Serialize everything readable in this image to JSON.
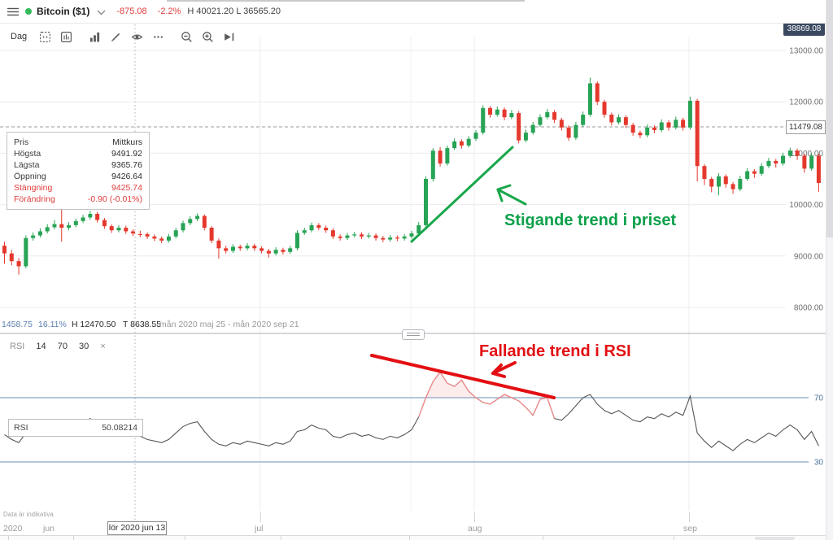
{
  "topbar": {
    "title": "Bitcoin ($1)",
    "change": "-875.08",
    "change_pct": "-2.2%",
    "session_high_low": "H 40021.20 L 36565.20"
  },
  "toolbar": {
    "interval_label": "Dag",
    "icons": [
      "interval-settings",
      "chart-type",
      "indicators",
      "drawing-tools",
      "visibility",
      "more-options",
      "zoom-out",
      "zoom-in",
      "go-to-latest"
    ]
  },
  "price_badge": "38869.08",
  "crosshair": {
    "price_label": "11479.08",
    "date_label": "lör 2020 jun 13"
  },
  "info_panel": {
    "rows": [
      {
        "label": "Pris",
        "value": "Mittkurs"
      },
      {
        "label": "Högsta",
        "value": "9491.92"
      },
      {
        "label": "Lägsta",
        "value": "9365.76"
      },
      {
        "label": "Öppning",
        "value": "9426.64"
      },
      {
        "label": "Stängning",
        "value": "9425.74"
      },
      {
        "label": "Förändring",
        "value": "-0.90 (-0.01%)"
      }
    ]
  },
  "status_bar": {
    "range": "1458.75",
    "range_pct": "16.11%",
    "high": "H 12470.50",
    "low": "T 8638.55",
    "period": "mån 2020 maj 25 - mån 2020 sep 21"
  },
  "rsi_header": {
    "name": "RSI",
    "period": "14",
    "upper": "70",
    "lower": "30",
    "close": "×"
  },
  "rsi_tooltip": {
    "label": "RSI",
    "value": "50.08214"
  },
  "annotations_text": {
    "price_trend": "Stigande trend i priset",
    "rsi_trend": "Fallande trend i RSI"
  },
  "x_axis": {
    "year": "2020",
    "months": [
      {
        "label": "jun"
      },
      {
        "label": "jul"
      },
      {
        "label": "aug"
      },
      {
        "label": "sep"
      }
    ]
  },
  "footer_note": "Data är indikativa",
  "colors": {
    "up": "#27a355",
    "down": "#e5382d",
    "annotation_green": "#17a74a",
    "annotation_red": "#e30f13",
    "rsi_level_blue": "#6a8fb5",
    "badge_bg": "#3a4961"
  },
  "chart_data": {
    "type": "candlestick",
    "instrument": "Bitcoin ($1)",
    "interval": "Dag",
    "visible_range": "mån 2020 maj 25 - mån 2020 sep 21",
    "price_axis": {
      "tick_labels": [
        "13000.00",
        "12000.00",
        "11000.00",
        "10000.00",
        "9000.00",
        "8000.00"
      ],
      "tick_values": [
        13000,
        12000,
        11000,
        10000,
        9000,
        8000
      ],
      "ylim": [
        7700,
        13270
      ]
    },
    "rsi_axis": {
      "tick_labels": [
        "70",
        "30"
      ],
      "levels": [
        70,
        30
      ]
    },
    "candles": [
      [
        9200,
        9280,
        8850,
        9050
      ],
      [
        9050,
        9120,
        8820,
        8900
      ],
      [
        8900,
        8960,
        8639,
        8800
      ],
      [
        8800,
        9400,
        8760,
        9350
      ],
      [
        9350,
        9460,
        9300,
        9400
      ],
      [
        9400,
        9540,
        9360,
        9480
      ],
      [
        9480,
        9620,
        9440,
        9560
      ],
      [
        9560,
        9700,
        9520,
        9620
      ],
      [
        9620,
        10100,
        9280,
        9550
      ],
      [
        9550,
        9660,
        9500,
        9600
      ],
      [
        9600,
        9730,
        9560,
        9680
      ],
      [
        9680,
        9800,
        9640,
        9750
      ],
      [
        9750,
        9880,
        9710,
        9820
      ],
      [
        9820,
        9860,
        9650,
        9700
      ],
      [
        9700,
        9740,
        9530,
        9580
      ],
      [
        9580,
        9620,
        9450,
        9500
      ],
      [
        9500,
        9600,
        9460,
        9550
      ],
      [
        9550,
        9590,
        9430,
        9480
      ],
      [
        9480,
        9520,
        9390,
        9440
      ],
      [
        9427,
        9492,
        9366,
        9426
      ],
      [
        9426,
        9460,
        9330,
        9380
      ],
      [
        9380,
        9420,
        9290,
        9340
      ],
      [
        9340,
        9380,
        9250,
        9300
      ],
      [
        9300,
        9430,
        9260,
        9380
      ],
      [
        9380,
        9550,
        9340,
        9500
      ],
      [
        9500,
        9690,
        9460,
        9640
      ],
      [
        9640,
        9770,
        9600,
        9720
      ],
      [
        9720,
        9830,
        9680,
        9780
      ],
      [
        9780,
        9810,
        9500,
        9550
      ],
      [
        9550,
        9580,
        9250,
        9300
      ],
      [
        9300,
        9340,
        8950,
        9150
      ],
      [
        9150,
        9200,
        9050,
        9100
      ],
      [
        9100,
        9230,
        9060,
        9180
      ],
      [
        9180,
        9220,
        9100,
        9150
      ],
      [
        9150,
        9250,
        9110,
        9200
      ],
      [
        9200,
        9240,
        9100,
        9150
      ],
      [
        9150,
        9190,
        9050,
        9100
      ],
      [
        9100,
        9140,
        8970,
        9050
      ],
      [
        9050,
        9170,
        9010,
        9120
      ],
      [
        9120,
        9160,
        9030,
        9080
      ],
      [
        9080,
        9200,
        9040,
        9150
      ],
      [
        9150,
        9500,
        9110,
        9450
      ],
      [
        9450,
        9550,
        9410,
        9500
      ],
      [
        9500,
        9650,
        9460,
        9600
      ],
      [
        9600,
        9640,
        9500,
        9550
      ],
      [
        9550,
        9590,
        9450,
        9500
      ],
      [
        9500,
        9540,
        9330,
        9380
      ],
      [
        9380,
        9420,
        9300,
        9350
      ],
      [
        9350,
        9450,
        9310,
        9400
      ],
      [
        9400,
        9470,
        9360,
        9420
      ],
      [
        9420,
        9460,
        9330,
        9380
      ],
      [
        9380,
        9450,
        9340,
        9400
      ],
      [
        9400,
        9440,
        9300,
        9350
      ],
      [
        9350,
        9390,
        9270,
        9320
      ],
      [
        9320,
        9410,
        9280,
        9360
      ],
      [
        9360,
        9400,
        9290,
        9340
      ],
      [
        9340,
        9430,
        9300,
        9380
      ],
      [
        9380,
        9490,
        9340,
        9440
      ],
      [
        9440,
        9660,
        9400,
        9600
      ],
      [
        9600,
        10550,
        9560,
        10500
      ],
      [
        10500,
        11100,
        10450,
        11050
      ],
      [
        11050,
        11120,
        10740,
        10800
      ],
      [
        10800,
        11150,
        10760,
        11100
      ],
      [
        11100,
        11290,
        11060,
        11230
      ],
      [
        11230,
        11270,
        11090,
        11150
      ],
      [
        11150,
        11330,
        11110,
        11280
      ],
      [
        11280,
        11450,
        11240,
        11400
      ],
      [
        11400,
        11930,
        11360,
        11880
      ],
      [
        11880,
        11920,
        11690,
        11750
      ],
      [
        11750,
        11910,
        11710,
        11850
      ],
      [
        11850,
        11890,
        11640,
        11700
      ],
      [
        11700,
        11840,
        11660,
        11780
      ],
      [
        11780,
        11820,
        11190,
        11250
      ],
      [
        11250,
        11460,
        11210,
        11400
      ],
      [
        11400,
        11610,
        11360,
        11550
      ],
      [
        11550,
        11760,
        11510,
        11700
      ],
      [
        11700,
        11860,
        11660,
        11800
      ],
      [
        11800,
        11840,
        11590,
        11650
      ],
      [
        11650,
        11690,
        11440,
        11500
      ],
      [
        11500,
        11540,
        11240,
        11300
      ],
      [
        11300,
        11610,
        11260,
        11550
      ],
      [
        11550,
        11810,
        11510,
        11750
      ],
      [
        11750,
        12470,
        11710,
        12360
      ],
      [
        12360,
        12400,
        11940,
        12000
      ],
      [
        12000,
        12040,
        11690,
        11750
      ],
      [
        11750,
        11790,
        11540,
        11600
      ],
      [
        11600,
        11760,
        11560,
        11700
      ],
      [
        11700,
        11740,
        11490,
        11550
      ],
      [
        11550,
        11590,
        11340,
        11400
      ],
      [
        11400,
        11440,
        11290,
        11350
      ],
      [
        11350,
        11560,
        11310,
        11500
      ],
      [
        11500,
        11540,
        11390,
        11450
      ],
      [
        11450,
        11660,
        11410,
        11600
      ],
      [
        11600,
        11640,
        11440,
        11500
      ],
      [
        11500,
        11710,
        11460,
        11650
      ],
      [
        11650,
        11690,
        11440,
        11500
      ],
      [
        11500,
        12100,
        11460,
        12020
      ],
      [
        12020,
        12060,
        10450,
        10750
      ],
      [
        10750,
        10790,
        10380,
        10500
      ],
      [
        10500,
        10540,
        10240,
        10350
      ],
      [
        10350,
        10610,
        10180,
        10550
      ],
      [
        10550,
        10590,
        10330,
        10400
      ],
      [
        10400,
        10440,
        10210,
        10300
      ],
      [
        10300,
        10560,
        10260,
        10500
      ],
      [
        10500,
        10710,
        10460,
        10650
      ],
      [
        10650,
        10690,
        10520,
        10600
      ],
      [
        10600,
        10810,
        10560,
        10750
      ],
      [
        10750,
        10910,
        10710,
        10850
      ],
      [
        10850,
        10890,
        10720,
        10800
      ],
      [
        10800,
        11010,
        10760,
        10950
      ],
      [
        10950,
        11110,
        10910,
        11050
      ],
      [
        11050,
        11090,
        10870,
        10950
      ],
      [
        10950,
        10990,
        10620,
        10700
      ],
      [
        10700,
        11000,
        10660,
        10950
      ],
      [
        10950,
        10990,
        10250,
        10420
      ]
    ],
    "rsi_values": [
      47,
      44,
      42,
      48,
      49,
      50,
      52,
      53,
      51,
      52,
      54,
      55,
      57,
      53,
      50,
      48,
      49,
      47,
      46,
      46,
      44,
      43,
      42,
      44,
      48,
      52,
      54,
      55,
      49,
      44,
      41,
      40,
      42,
      41,
      43,
      42,
      41,
      40,
      42,
      41,
      43,
      49,
      50,
      53,
      51,
      50,
      46,
      45,
      47,
      48,
      46,
      47,
      45,
      44,
      46,
      45,
      47,
      50,
      58,
      70,
      80,
      86,
      79,
      77,
      81,
      74,
      70,
      67,
      66,
      69,
      72,
      70,
      68,
      64,
      59,
      69,
      70,
      57,
      56,
      60,
      65,
      70,
      72,
      66,
      62,
      60,
      62,
      59,
      56,
      55,
      58,
      57,
      60,
      58,
      61,
      59,
      71,
      48,
      43,
      39,
      43,
      40,
      37,
      41,
      44,
      42,
      45,
      48,
      46,
      50,
      53,
      50,
      44,
      49,
      40
    ],
    "rsi_highlight": {
      "from_index": 58,
      "to_index": 77,
      "level": 70
    },
    "trend_annotations": [
      {
        "name": "price-uptrend-line",
        "color": "#17a74a",
        "width": 3,
        "segments": [
          [
            [
              506,
              297
            ],
            [
              630,
              181
            ]
          ]
        ]
      },
      {
        "name": "price-uptrend-arrow",
        "color": "#17a74a",
        "width": 3,
        "segments": [
          [
            [
              646,
              251
            ],
            [
              612,
              233
            ]
          ],
          [
            [
              612,
              233
            ],
            [
              627,
              228
            ]
          ],
          [
            [
              612,
              233
            ],
            [
              617,
              247
            ]
          ]
        ]
      },
      {
        "name": "rsi-downtrend-line",
        "color": "#e30f13",
        "width": 4,
        "segments": [
          [
            [
              457,
              437
            ],
            [
              681,
              489
            ]
          ]
        ]
      },
      {
        "name": "rsi-downtrend-arrow",
        "color": "#e30f13",
        "width": 4,
        "segments": [
          [
            [
              633,
              446
            ],
            [
              606,
              459
            ]
          ],
          [
            [
              606,
              459
            ],
            [
              616,
              449
            ]
          ],
          [
            [
              606,
              459
            ],
            [
              620,
              463
            ]
          ]
        ]
      }
    ]
  }
}
